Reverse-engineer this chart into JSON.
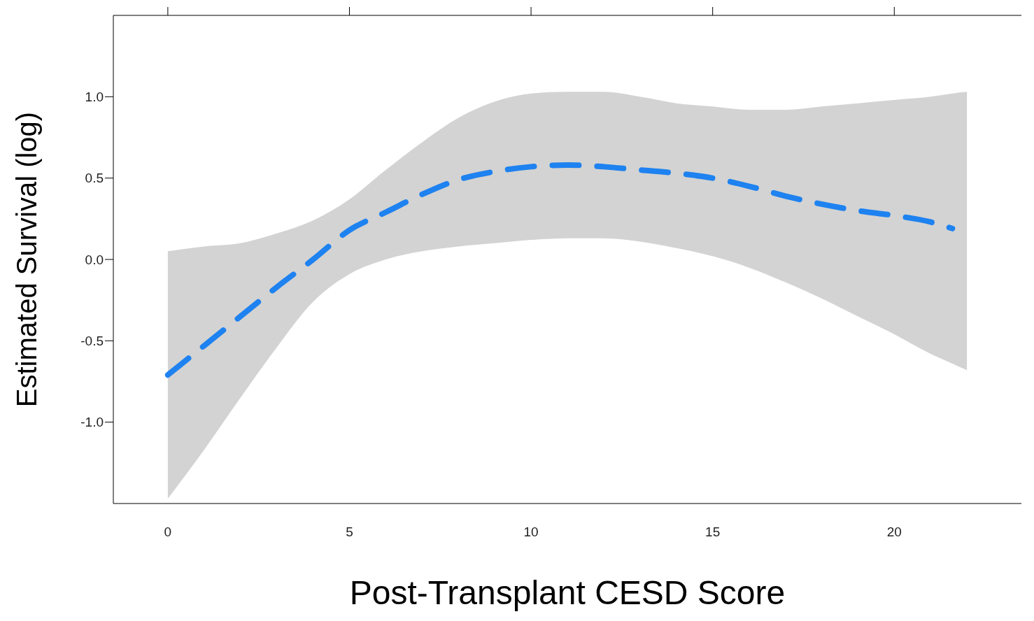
{
  "chart_data": {
    "type": "line",
    "xlabel": "Post-Transplant CESD Score",
    "ylabel": "Estimated Survival (log)",
    "x": [
      0,
      1,
      2,
      3,
      4,
      5,
      6,
      7,
      8,
      9,
      10,
      11,
      12,
      13,
      14,
      15,
      16,
      17,
      18,
      19,
      20,
      21,
      21.6,
      22
    ],
    "series": [
      {
        "color": "#1e82f0",
        "values": [
          -0.71,
          -0.53,
          -0.35,
          -0.17,
          0.0,
          0.18,
          0.29,
          0.4,
          0.49,
          0.54,
          0.57,
          0.58,
          0.57,
          0.55,
          0.53,
          0.5,
          0.45,
          0.39,
          0.34,
          0.3,
          0.27,
          0.23,
          0.19,
          null
        ],
        "lower": [
          -1.47,
          -1.17,
          -0.85,
          -0.54,
          -0.26,
          -0.09,
          0.0,
          0.05,
          0.08,
          0.1,
          0.12,
          0.13,
          0.13,
          0.11,
          0.07,
          0.02,
          -0.05,
          -0.14,
          -0.24,
          -0.35,
          -0.46,
          -0.58,
          -0.64,
          -0.68
        ],
        "upper": [
          0.05,
          0.08,
          0.1,
          0.16,
          0.24,
          0.37,
          0.55,
          0.72,
          0.87,
          0.97,
          1.02,
          1.03,
          1.03,
          1.0,
          0.96,
          0.94,
          0.92,
          0.92,
          0.94,
          0.96,
          0.98,
          1.0,
          1.02,
          1.03
        ]
      }
    ],
    "xlim": [
      -1.5,
      23.5
    ],
    "xticks": [
      0,
      5,
      10,
      15,
      20
    ],
    "ylim": [
      -1.5,
      1.5
    ],
    "yticks": [
      {
        "value": -1,
        "label": "-1.0"
      },
      {
        "value": -0.5,
        "label": "-0.5"
      },
      {
        "value": 0,
        "label": "0.0"
      },
      {
        "value": 0.5,
        "label": "0.5"
      },
      {
        "value": 1,
        "label": "1.0"
      }
    ],
    "grid": false,
    "marker": "none",
    "line_style": "dashed"
  }
}
